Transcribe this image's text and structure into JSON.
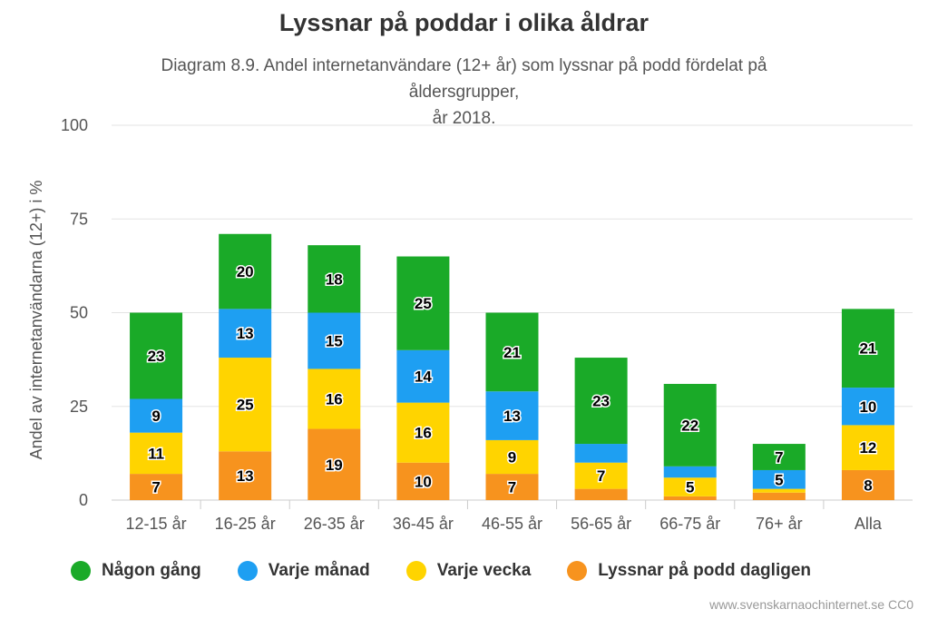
{
  "chart_data": {
    "type": "bar",
    "stacked": true,
    "title": "Lyssnar på poddar i olika åldrar",
    "subtitle_line1": "Diagram 8.9. Andel internetanvändare (12+ år) som lyssnar på podd fördelat på åldersgrupper,",
    "subtitle_line2": "år 2018.",
    "xlabel": "",
    "ylabel": "Andel av internetanvändarna (12+) i %",
    "ylim": [
      0,
      100
    ],
    "yticks": [
      0,
      25,
      50,
      75,
      100
    ],
    "grid": true,
    "categories": [
      "12-15 år",
      "16-25 år",
      "26-35 år",
      "36-45 år",
      "46-55 år",
      "56-65 år",
      "66-75 år",
      "76+ år",
      "Alla"
    ],
    "series": [
      {
        "name": "Lyssnar på podd dagligen",
        "color": "#f7931e",
        "values": [
          7,
          13,
          19,
          10,
          7,
          3,
          1,
          2,
          8
        ],
        "labels": [
          "7",
          "13",
          "19",
          "10",
          "7",
          "",
          "",
          "",
          "8"
        ]
      },
      {
        "name": "Varje vecka",
        "color": "#ffd400",
        "values": [
          11,
          25,
          16,
          16,
          9,
          7,
          5,
          1,
          12
        ],
        "labels": [
          "11",
          "25",
          "16",
          "16",
          "9",
          "7",
          "5",
          "",
          "12"
        ]
      },
      {
        "name": "Varje månad",
        "color": "#1e9ff2",
        "values": [
          9,
          13,
          15,
          14,
          13,
          5,
          3,
          5,
          10
        ],
        "labels": [
          "9",
          "13",
          "15",
          "14",
          "13",
          "",
          "",
          "5",
          "10"
        ]
      },
      {
        "name": "Någon gång",
        "color": "#1aaa28",
        "values": [
          23,
          20,
          18,
          25,
          21,
          23,
          22,
          7,
          21
        ],
        "labels": [
          "23",
          "20",
          "18",
          "25",
          "21",
          "23",
          "22",
          "7",
          "21"
        ]
      }
    ],
    "legend_order": [
      "Någon gång",
      "Varje månad",
      "Varje vecka",
      "Lyssnar på podd dagligen"
    ],
    "legend_position": "bottom-left"
  },
  "credit": "www.svenskarnaochinternet.se CC0"
}
